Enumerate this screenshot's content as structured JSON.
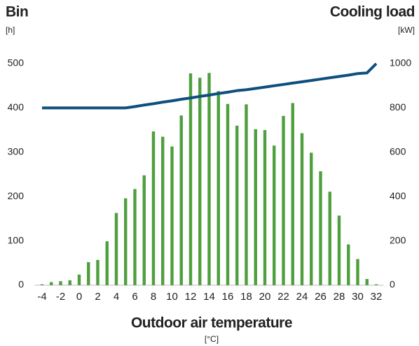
{
  "chart_data": {
    "type": "bar",
    "y_axis_label": "Bin",
    "y_axis_unit": "[h]",
    "y2_axis_label": "Cooling load",
    "y2_axis_unit": "[kW]",
    "x_axis_label": "Outdoor air temperature",
    "x_axis_unit": "[°C]",
    "x": [
      -4,
      -3,
      -2,
      -1,
      0,
      1,
      2,
      3,
      4,
      5,
      6,
      7,
      8,
      9,
      10,
      11,
      12,
      13,
      14,
      15,
      16,
      17,
      18,
      19,
      20,
      21,
      22,
      23,
      24,
      25,
      26,
      27,
      28,
      29,
      30,
      31,
      32
    ],
    "xlim": [
      -4.8,
      32.8
    ],
    "xticks": [
      -4,
      -2,
      0,
      2,
      4,
      6,
      8,
      10,
      12,
      14,
      16,
      18,
      20,
      22,
      24,
      26,
      28,
      30,
      32
    ],
    "ylim": [
      0,
      500
    ],
    "yticks": [
      0,
      100,
      200,
      300,
      400,
      500
    ],
    "y2lim": [
      0,
      1000
    ],
    "y2ticks": [
      0,
      200,
      400,
      600,
      800,
      1000
    ],
    "grid": false,
    "series": [
      {
        "type": "bar",
        "color": "#4e9f3d",
        "values": [
          2,
          7,
          9,
          11,
          24,
          52,
          57,
          99,
          163,
          196,
          217,
          248,
          347,
          335,
          313,
          383,
          478,
          468,
          479,
          438,
          409,
          360,
          408,
          352,
          350,
          315,
          382,
          411,
          343,
          299,
          257,
          211,
          157,
          92,
          59,
          14,
          2
        ]
      },
      {
        "type": "line",
        "axis": "y2",
        "color": "#0d4f7e",
        "values": [
          800,
          800,
          800,
          800,
          800,
          800,
          800,
          800,
          800,
          800,
          806,
          813,
          819,
          826,
          832,
          839,
          845,
          852,
          858,
          865,
          871,
          878,
          882,
          888,
          894,
          900,
          906,
          912,
          918,
          924,
          930,
          936,
          942,
          948,
          955,
          958,
          1000
        ]
      }
    ]
  }
}
